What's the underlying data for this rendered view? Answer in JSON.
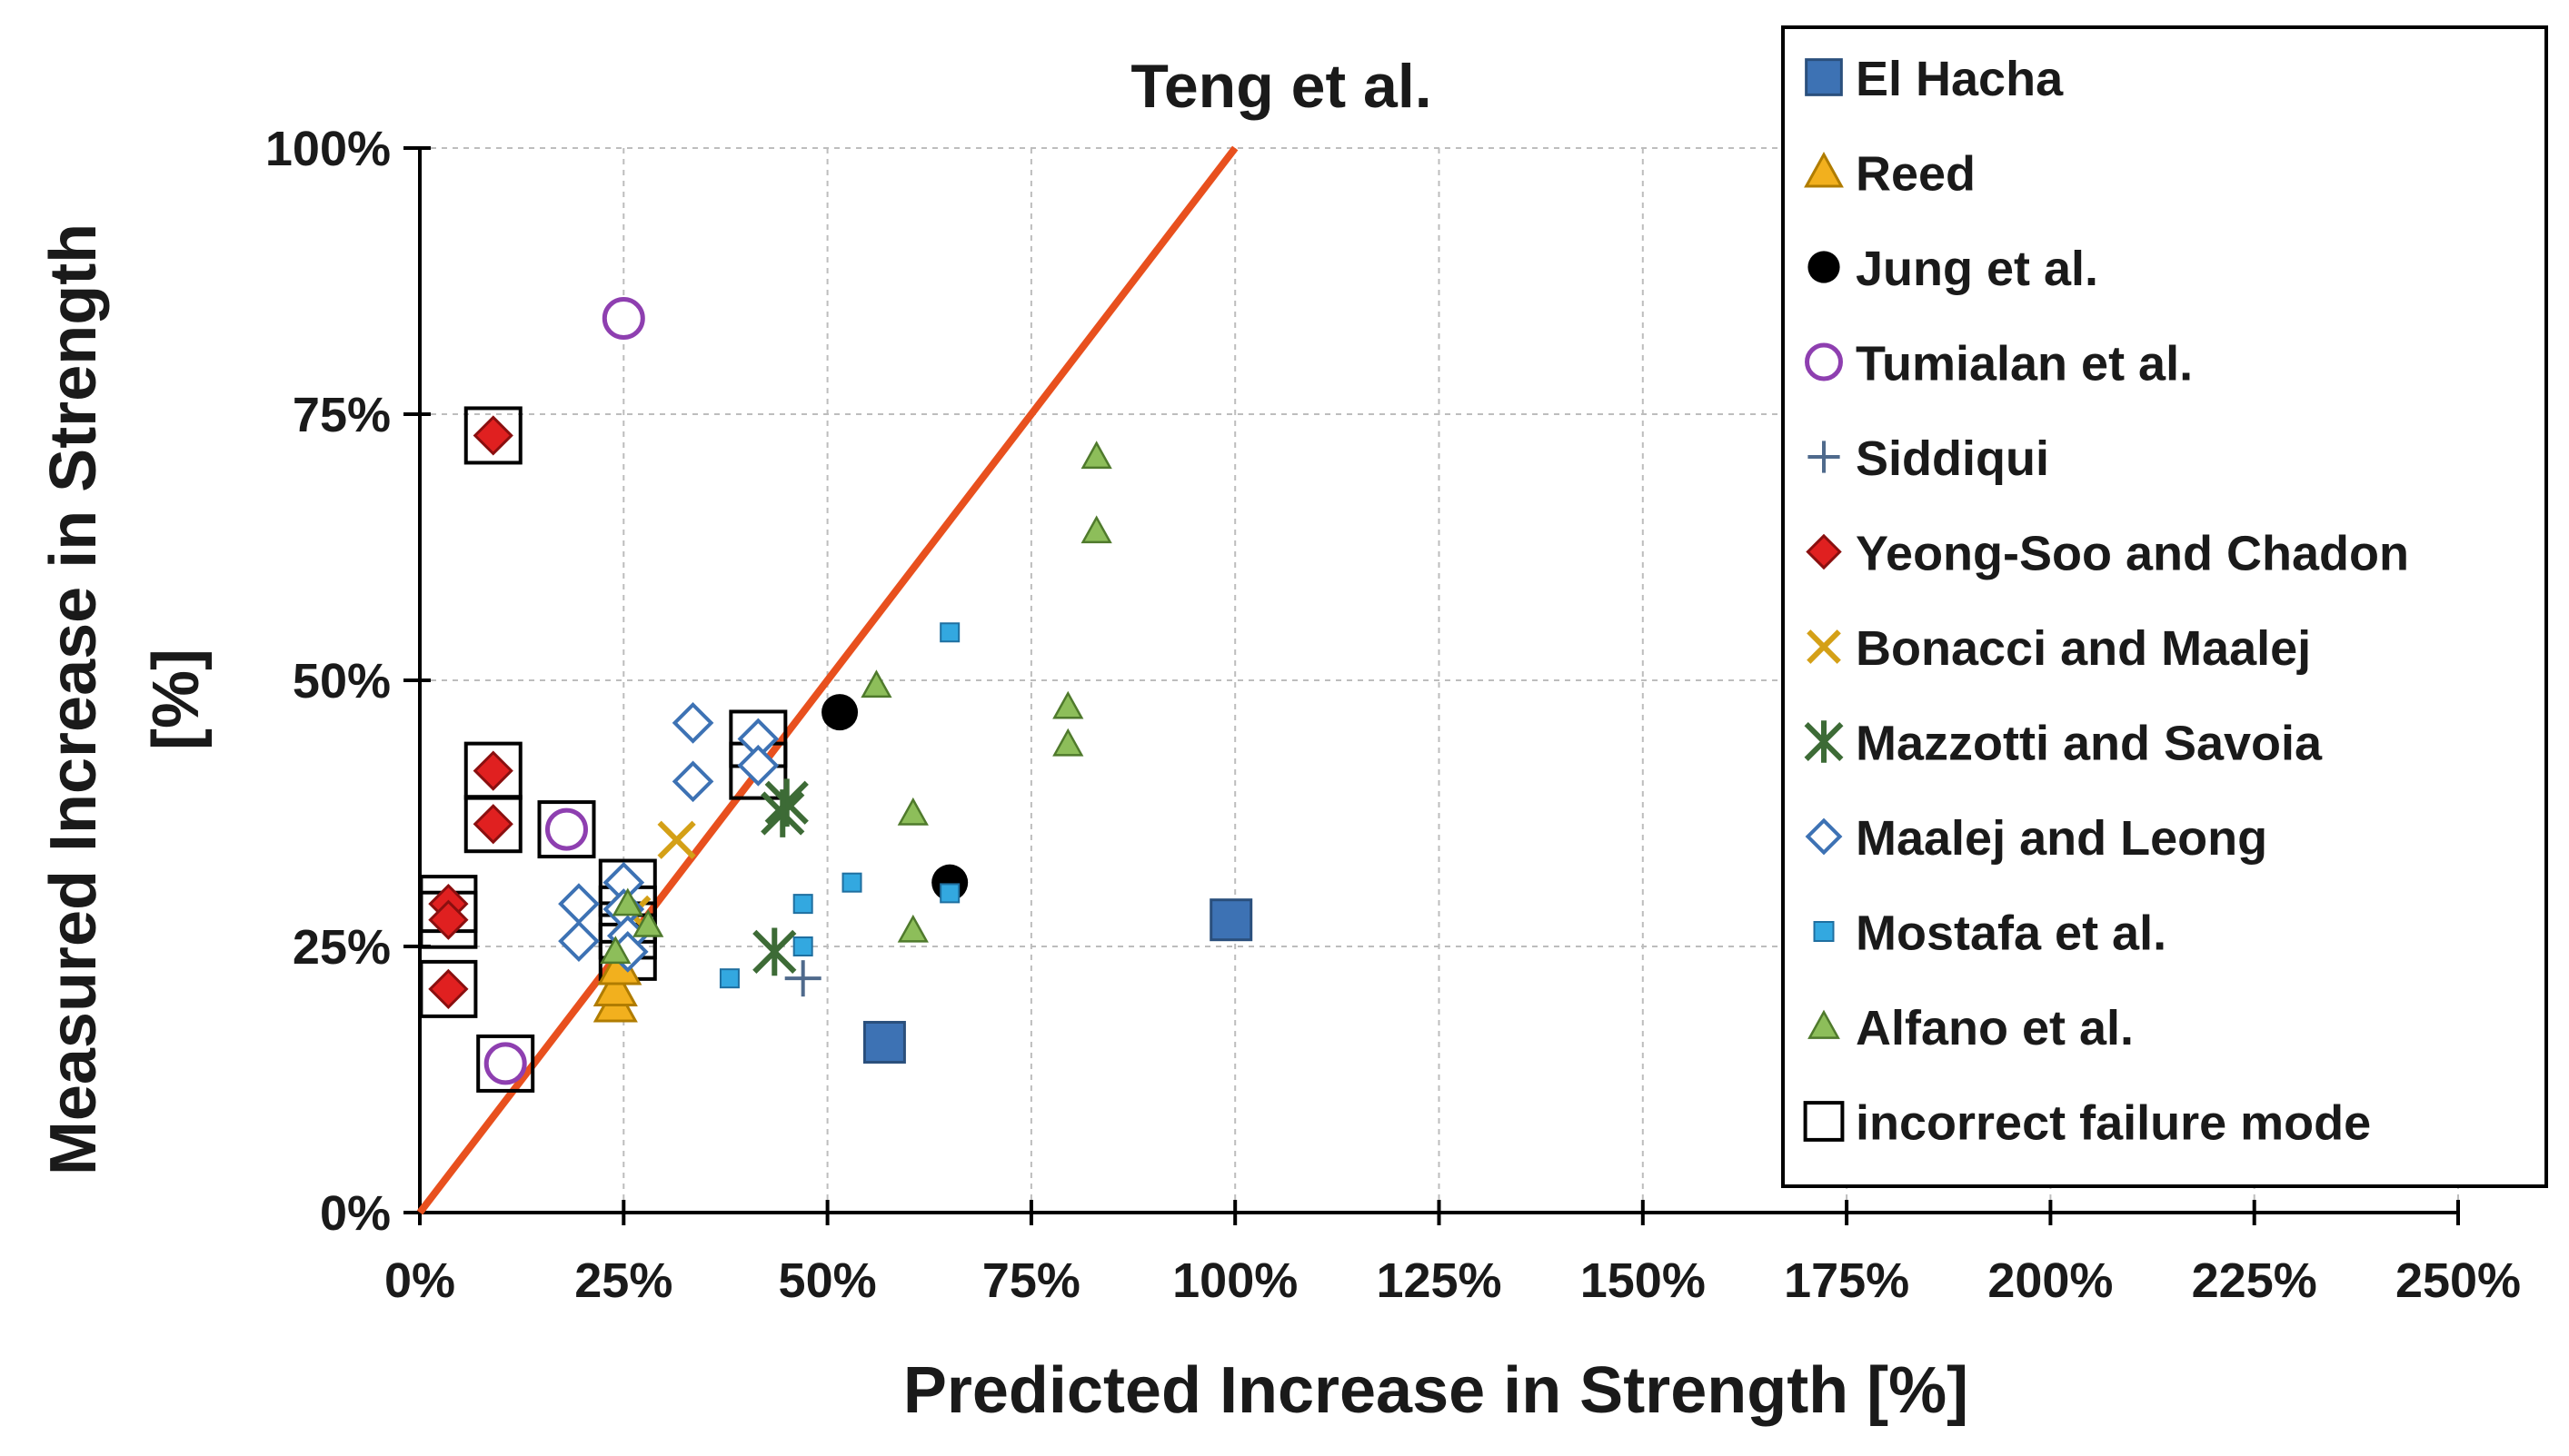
{
  "chart_data": {
    "type": "scatter",
    "title": "Teng et al.",
    "xlabel": "Predicted Increase in Strength [%]",
    "ylabel_lines": [
      "Measured Increase in Strength",
      "[%]"
    ],
    "xlim": [
      0,
      250
    ],
    "ylim": [
      0,
      100
    ],
    "x_ticks": [
      0,
      25,
      50,
      75,
      100,
      125,
      150,
      175,
      200,
      225,
      250
    ],
    "y_ticks": [
      0,
      25,
      50,
      75,
      100
    ],
    "x_tick_labels": [
      "0%",
      "25%",
      "50%",
      "75%",
      "100%",
      "125%",
      "150%",
      "175%",
      "200%",
      "225%",
      "250%"
    ],
    "y_tick_labels": [
      "0%",
      "25%",
      "50%",
      "75%",
      "100%"
    ],
    "grid": true,
    "legend_position": "top-right",
    "reference_line": {
      "name": "line of equality",
      "x": [
        0,
        100
      ],
      "y": [
        0,
        100
      ],
      "color": "#E8501E"
    },
    "series": [
      {
        "name": "El Hacha",
        "marker": "square",
        "color": "#3D72B4",
        "x": [
          99.5,
          57
        ],
        "y": [
          27.5,
          16
        ]
      },
      {
        "name": "Reed",
        "marker": "triangle",
        "color": "#F2B01E",
        "x": [
          24,
          24,
          24.5
        ],
        "y": [
          19.5,
          21,
          23
        ]
      },
      {
        "name": "Jung et al.",
        "marker": "circle",
        "color": "#000000",
        "x": [
          51.5,
          65
        ],
        "y": [
          47,
          31
        ]
      },
      {
        "name": "Tumialan et al.",
        "marker": "circle-open",
        "color": "#8E3FB0",
        "x": [
          25,
          18,
          10.5
        ],
        "y": [
          84,
          36,
          14
        ]
      },
      {
        "name": "Siddiqui",
        "marker": "plus",
        "color": "#4F6A8C",
        "x": [
          47
        ],
        "y": [
          22
        ]
      },
      {
        "name": "Yeong-Soo and Chadon",
        "marker": "diamond",
        "color": "#E02020",
        "x": [
          9,
          9,
          9,
          3.5,
          3.5,
          3.5
        ],
        "y": [
          73,
          41.5,
          36.5,
          29,
          27.5,
          21
        ]
      },
      {
        "name": "Bonacci and Maalej",
        "marker": "x",
        "color": "#D4A017",
        "x": [
          31.5,
          26
        ],
        "y": [
          35,
          28
        ]
      },
      {
        "name": "Mazzotti and Savoia",
        "marker": "asterisk",
        "color": "#3D6B36",
        "x": [
          45,
          44.5,
          43.5
        ],
        "y": [
          38.5,
          37.5,
          24.5
        ]
      },
      {
        "name": "Maalej and Leong",
        "marker": "diamond-open",
        "color": "#3D72B4",
        "x": [
          33.5,
          33.5,
          41.5,
          41.5,
          19.5,
          19.5,
          25,
          25,
          25.5,
          25.5
        ],
        "y": [
          46,
          40.5,
          44.5,
          42,
          29,
          25.5,
          31,
          28.5,
          26,
          24.5
        ]
      },
      {
        "name": "Mostafa et al.",
        "marker": "square-small",
        "color": "#33A8E0",
        "x": [
          65,
          53,
          47,
          47,
          65,
          38
        ],
        "y": [
          54.5,
          31,
          29,
          25,
          30,
          22
        ]
      },
      {
        "name": "Alfano et al.",
        "marker": "triangle-small",
        "color": "#8DBE5A",
        "x": [
          83,
          83,
          56,
          79.5,
          79.5,
          60.5,
          60.5,
          25.5,
          28,
          24
        ],
        "y": [
          71,
          64,
          49.5,
          47.5,
          44,
          37.5,
          26.5,
          29,
          27,
          24.5
        ]
      },
      {
        "name": "incorrect failure mode",
        "marker": "square-open",
        "color": "#000000",
        "x": [
          9,
          9,
          9,
          3.5,
          3.5,
          3.5,
          10.5,
          18,
          41.5,
          41.5,
          25.5,
          25.5,
          25.5,
          25.5
        ],
        "y": [
          73,
          41.5,
          36.5,
          29,
          27.5,
          21,
          14,
          36,
          44.5,
          41.5,
          30.5,
          28,
          26.5,
          24.5
        ]
      }
    ]
  }
}
